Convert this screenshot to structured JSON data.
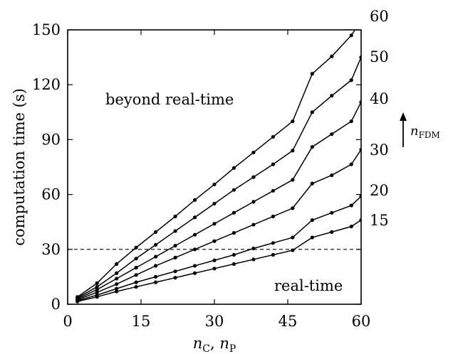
{
  "chart_data": {
    "type": "line",
    "xlabel": "n",
    "xlabel_sub1": "C",
    "xlabel_sep": ", ",
    "xlabel_sub2": "P",
    "ylabel": "computation time (s)",
    "xlim": [
      0,
      60
    ],
    "ylim": [
      0,
      150
    ],
    "xticks": [
      0,
      15,
      30,
      45,
      60
    ],
    "yticks": [
      0,
      30,
      60,
      90,
      120,
      150
    ],
    "grid": false,
    "threshold": 30,
    "annotations": {
      "above": "beyond real-time",
      "below": "real-time",
      "arrow_label_main": "n",
      "arrow_label_sub": "FDM"
    },
    "x": [
      2,
      6,
      10,
      14,
      18,
      22,
      26,
      30,
      34,
      38,
      42,
      46,
      50,
      54,
      58,
      60
    ],
    "series": [
      {
        "name": "15",
        "values": [
          1.5,
          4.0,
          7.0,
          9.5,
          12.0,
          14.5,
          17.0,
          19.5,
          22.0,
          24.5,
          27.0,
          29.5,
          36.5,
          39.5,
          42.5,
          46.0
        ]
      },
      {
        "name": "20",
        "values": [
          2.0,
          5.0,
          8.5,
          12.0,
          15.0,
          18.0,
          21.0,
          24.0,
          27.0,
          30.5,
          33.5,
          36.5,
          46.0,
          50.0,
          54.0,
          59.0
        ]
      },
      {
        "name": "30",
        "values": [
          2.5,
          6.5,
          11.0,
          16.0,
          21.0,
          25.5,
          30.0,
          34.5,
          39.0,
          43.5,
          48.0,
          52.5,
          66.0,
          70.5,
          76.5,
          84.5
        ]
      },
      {
        "name": "40",
        "values": [
          3.0,
          8.0,
          14.0,
          20.0,
          26.0,
          32.0,
          38.0,
          44.0,
          50.0,
          56.0,
          62.0,
          68.0,
          86.0,
          93.0,
          100.0,
          110.5
        ]
      },
      {
        "name": "50",
        "values": [
          3.5,
          9.5,
          17.0,
          25.0,
          32.5,
          40.0,
          47.5,
          55.0,
          62.5,
          69.5,
          76.5,
          84.0,
          105.0,
          114.0,
          122.5,
          135.0
        ]
      },
      {
        "name": "60",
        "values": [
          4.0,
          11.5,
          22.0,
          31.0,
          39.5,
          48.0,
          57.0,
          65.5,
          74.5,
          83.0,
          91.5,
          100.0,
          126.0,
          135.5,
          147.0,
          155.0
        ]
      }
    ]
  }
}
